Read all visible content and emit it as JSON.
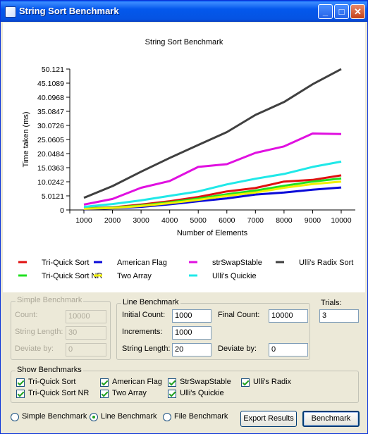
{
  "window": {
    "title": "String Sort Benchmark",
    "buttons": {
      "minimize": "_",
      "maximize": "□",
      "close": "✕"
    }
  },
  "chart_data": {
    "type": "line",
    "title": "String Sort Benchmark",
    "xlabel": "Number of Elements",
    "ylabel": "Time taken (ms)",
    "x": [
      1000,
      2000,
      3000,
      4000,
      5000,
      6000,
      7000,
      8000,
      9000,
      10000
    ],
    "x_ticks": [
      "1000",
      "2000",
      "3000",
      "4000",
      "5000",
      "6000",
      "7000",
      "8000",
      "9000",
      "10000"
    ],
    "y_ticks": [
      "0",
      "5.0121",
      "10.0242",
      "15.0363",
      "20.0484",
      "25.0605",
      "30.0726",
      "35.0847",
      "40.0968",
      "45.1089",
      "50.121"
    ],
    "ylim": [
      0,
      50.121
    ],
    "series": [
      {
        "name": "Tri-Quick Sort",
        "color": "#e01010",
        "values": [
          0.6,
          0.9,
          1.9,
          3.1,
          4.6,
          6.6,
          7.8,
          10.1,
          10.7,
          12.3
        ]
      },
      {
        "name": "American Flag",
        "color": "#0a0ad8",
        "values": [
          0.3,
          0.6,
          1.1,
          2.0,
          3.1,
          4.1,
          5.5,
          6.2,
          7.2,
          8.0
        ]
      },
      {
        "name": "strSwapStable",
        "color": "#e010e0",
        "values": [
          1.9,
          3.9,
          7.9,
          10.3,
          15.3,
          16.3,
          20.3,
          22.6,
          27.2,
          27.0
        ]
      },
      {
        "name": "Ulli's Radix Sort",
        "color": "#404040",
        "values": [
          4.3,
          8.5,
          13.6,
          18.5,
          23.1,
          27.7,
          33.8,
          38.4,
          44.7,
          50.1
        ]
      },
      {
        "name": "Tri-Quick Sort NR",
        "color": "#20e020",
        "values": [
          0.5,
          0.8,
          1.6,
          2.7,
          4.0,
          5.6,
          6.9,
          8.6,
          10.1,
          11.2
        ]
      },
      {
        "name": "Two Array",
        "color": "#f0f000",
        "values": [
          0.4,
          0.7,
          1.4,
          2.4,
          3.6,
          5.0,
          6.2,
          7.9,
          9.2,
          10.1
        ]
      },
      {
        "name": "Ulli's Quickie",
        "color": "#20e8e8",
        "values": [
          1.1,
          2.1,
          3.4,
          5.0,
          6.6,
          9.1,
          11.1,
          12.8,
          15.3,
          17.2
        ]
      }
    ]
  },
  "simple": {
    "label": "Simple Benchmark",
    "count_label": "Count:",
    "count_value": "10000",
    "strlen_label": "String Length:",
    "strlen_value": "30",
    "deviate_label": "Deviate by:",
    "deviate_value": "0"
  },
  "line": {
    "label": "Line Benchmark",
    "initial_label": "Initial Count:",
    "initial_value": "1000",
    "final_label": "Final Count:",
    "final_value": "10000",
    "increments_label": "Increments:",
    "increments_value": "1000",
    "strlen_label": "String Length:",
    "strlen_value": "20",
    "deviate_label": "Deviate by:",
    "deviate_value": "0"
  },
  "trials": {
    "label": "Trials:",
    "value": "3"
  },
  "show": {
    "label": "Show Benchmarks",
    "items": [
      "Tri-Quick Sort",
      "American Flag",
      "StrSwapStable",
      "Ulli's Radix",
      "Tri-Quick Sort NR",
      "Two Array",
      "Ulli's Quickie"
    ]
  },
  "modes": [
    "Simple Benchmark",
    "Line Benchmark",
    "File Benchmark"
  ],
  "buttons": {
    "export": "Export Results",
    "benchmark": "Benchmark"
  }
}
